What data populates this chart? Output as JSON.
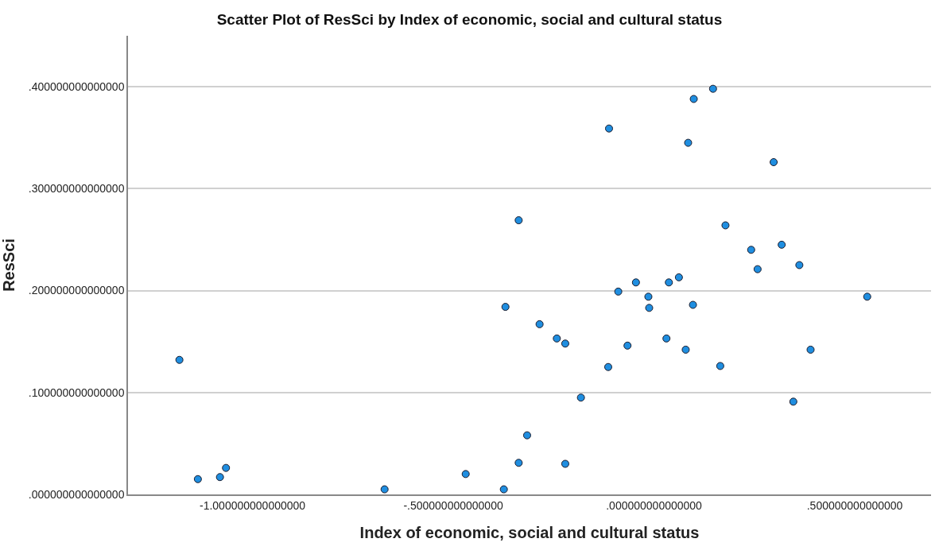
{
  "chart_data": {
    "type": "scatter",
    "title": "Scatter Plot of ResSci by Index of economic, social and cultural status",
    "xlabel": "Index of economic, social and cultural status",
    "ylabel": "ResSci",
    "x": [
      -1.182,
      -1.136,
      -1.081,
      -1.066,
      -0.671,
      -0.469,
      -0.374,
      -0.37,
      -0.337,
      -0.337,
      -0.316,
      -0.285,
      -0.242,
      -0.221,
      -0.221,
      -0.182,
      -0.112,
      -0.114,
      -0.089,
      -0.066,
      -0.045,
      -0.014,
      -0.012,
      0.031,
      0.037,
      0.062,
      0.079,
      0.085,
      0.099,
      0.097,
      0.147,
      0.165,
      0.178,
      0.242,
      0.258,
      0.298,
      0.318,
      0.347,
      0.362,
      0.39,
      0.531
    ],
    "values": [
      0.132,
      0.015,
      0.017,
      0.026,
      0.005,
      0.02,
      0.005,
      0.184,
      0.269,
      0.031,
      0.058,
      0.167,
      0.153,
      0.148,
      0.03,
      0.095,
      0.359,
      0.125,
      0.199,
      0.146,
      0.208,
      0.194,
      0.183,
      0.153,
      0.208,
      0.213,
      0.142,
      0.345,
      0.388,
      0.186,
      0.398,
      0.126,
      0.264,
      0.24,
      0.221,
      0.326,
      0.245,
      0.091,
      0.225,
      0.142,
      0.194
    ],
    "color": "#1f8ee0",
    "marker": "circle",
    "grid": "y",
    "xlim": [
      -1.31,
      0.69
    ],
    "ylim": [
      0,
      0.45
    ],
    "xticks": [
      {
        "value": -1,
        "label": "-1.000000000000000"
      },
      {
        "value": -0.5,
        "label": "-.500000000000000"
      },
      {
        "value": 0,
        "label": ".000000000000000"
      },
      {
        "value": 0.5,
        "label": ".500000000000000"
      }
    ],
    "yticks": [
      {
        "value": 0,
        "label": ".000000000000000"
      },
      {
        "value": 0.1,
        "label": ".100000000000000"
      },
      {
        "value": 0.2,
        "label": ".200000000000000"
      },
      {
        "value": 0.3,
        "label": ".300000000000000"
      },
      {
        "value": 0.4,
        "label": ".400000000000000"
      }
    ]
  }
}
